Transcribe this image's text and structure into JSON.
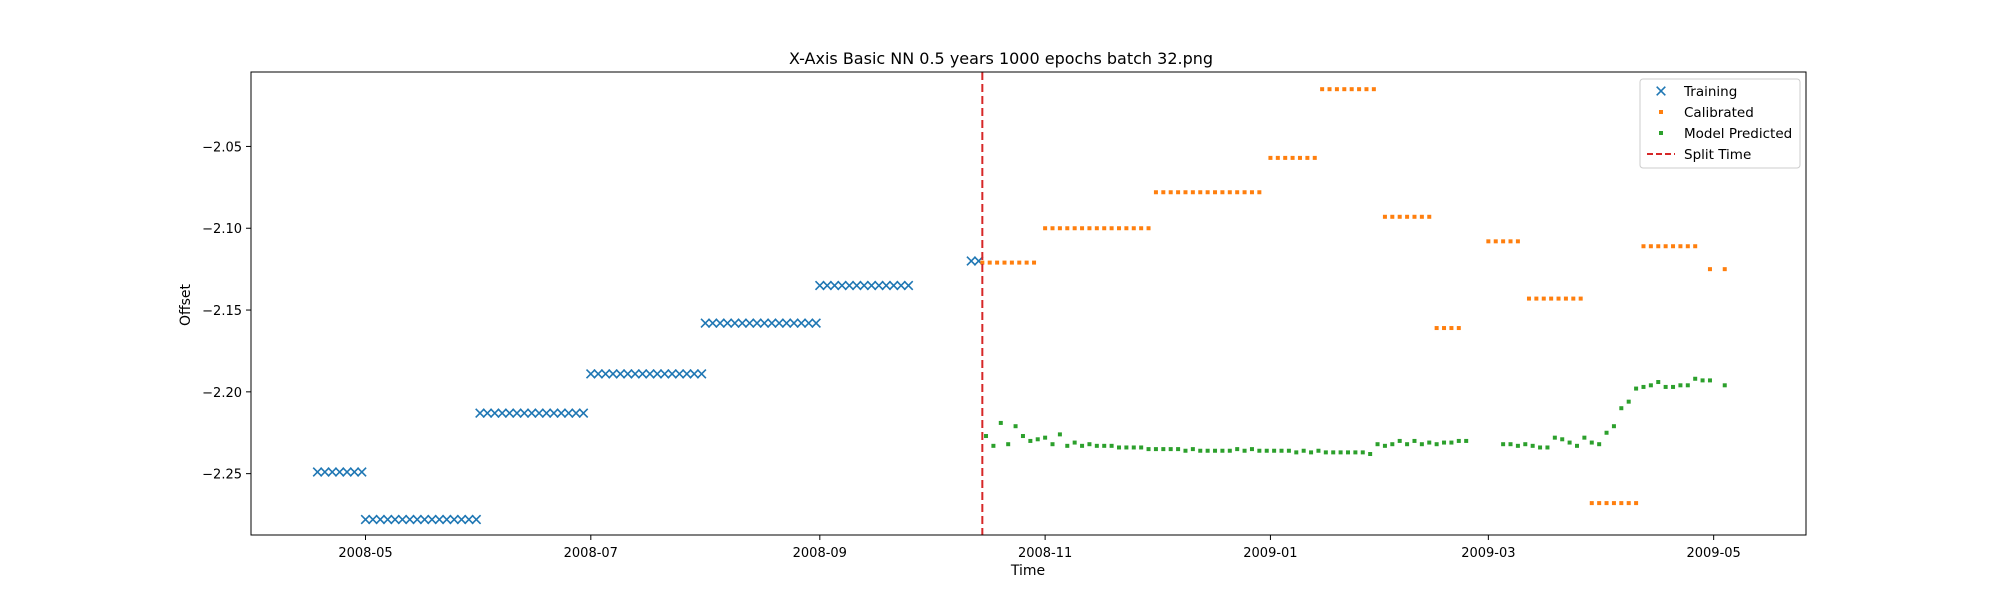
{
  "chart_data": {
    "type": "scatter",
    "title": "X-Axis Basic NN 0.5 years 1000 epochs batch 32.png",
    "xlabel": "Time",
    "ylabel": "Offset",
    "x_type": "date",
    "xlim": [
      "2008-03-31",
      "2009-05-26"
    ],
    "ylim": [
      -2.2875,
      -2.0045
    ],
    "x_ticks": [
      "2008-05-01",
      "2008-07-01",
      "2008-09-01",
      "2008-11-01",
      "2009-01-01",
      "2009-03-01",
      "2009-05-01"
    ],
    "x_tick_labels": [
      "2008-05",
      "2008-07",
      "2008-09",
      "2008-11",
      "2009-01",
      "2009-03",
      "2009-05"
    ],
    "y_ticks": [
      -2.25,
      -2.2,
      -2.15,
      -2.1,
      -2.05
    ],
    "y_tick_labels": [
      "−2.25",
      "−2.20",
      "−2.15",
      "−2.10",
      "−2.05"
    ],
    "grid": false,
    "legend_position": "top-right",
    "split_time": "2008-10-15",
    "series": [
      {
        "name": "Training",
        "marker": "x",
        "color": "#1f77b4",
        "segments": [
          {
            "start": "2008-04-18",
            "end": "2008-04-30",
            "step": 2,
            "y": -2.249
          },
          {
            "start": "2008-05-01",
            "end": "2008-05-31",
            "step": 2,
            "y": -2.278
          },
          {
            "start": "2008-06-01",
            "end": "2008-06-30",
            "step": 2,
            "y": -2.213
          },
          {
            "start": "2008-07-01",
            "end": "2008-07-31",
            "step": 2,
            "y": -2.189
          },
          {
            "start": "2008-08-01",
            "end": "2008-08-31",
            "step": 2,
            "y": -2.158
          },
          {
            "start": "2008-09-01",
            "end": "2008-09-25",
            "step": 2,
            "y": -2.135
          },
          {
            "start": "2008-10-12",
            "end": "2008-10-14",
            "step": 2,
            "y": -2.12
          }
        ]
      },
      {
        "name": "Calibrated",
        "marker": "dot",
        "color": "#ff7f0e",
        "segments": [
          {
            "start": "2008-10-15",
            "end": "2008-10-29",
            "step": 2,
            "y": -2.121
          },
          {
            "start": "2008-11-01",
            "end": "2008-11-29",
            "step": 2,
            "y": -2.1
          },
          {
            "start": "2008-12-01",
            "end": "2008-12-29",
            "step": 2,
            "y": -2.078
          },
          {
            "start": "2009-01-01",
            "end": "2009-01-13",
            "step": 2,
            "y": -2.057
          },
          {
            "start": "2009-01-15",
            "end": "2009-01-29",
            "step": 2,
            "y": -2.015
          },
          {
            "start": "2009-02-01",
            "end": "2009-02-13",
            "step": 2,
            "y": -2.093
          },
          {
            "start": "2009-02-15",
            "end": "2009-02-21",
            "step": 2,
            "y": -2.161
          },
          {
            "start": "2009-03-01",
            "end": "2009-03-09",
            "step": 2,
            "y": -2.108
          },
          {
            "start": "2009-03-12",
            "end": "2009-03-26",
            "step": 2,
            "y": -2.143
          },
          {
            "start": "2009-03-29",
            "end": "2009-04-10",
            "step": 2,
            "y": -2.268
          },
          {
            "start": "2009-04-12",
            "end": "2009-04-26",
            "step": 2,
            "y": -2.111
          },
          {
            "start": "2009-04-30",
            "end": "2009-05-04",
            "step": 4,
            "y": -2.125
          }
        ]
      },
      {
        "name": "Model Predicted",
        "marker": "dot",
        "color": "#2ca02c",
        "points": [
          [
            "2008-10-16",
            -2.227
          ],
          [
            "2008-10-18",
            -2.233
          ],
          [
            "2008-10-20",
            -2.219
          ],
          [
            "2008-10-22",
            -2.232
          ],
          [
            "2008-10-24",
            -2.221
          ],
          [
            "2008-10-26",
            -2.227
          ],
          [
            "2008-10-28",
            -2.23
          ],
          [
            "2008-10-30",
            -2.229
          ],
          [
            "2008-11-01",
            -2.228
          ],
          [
            "2008-11-03",
            -2.232
          ],
          [
            "2008-11-05",
            -2.226
          ],
          [
            "2008-11-07",
            -2.233
          ],
          [
            "2008-11-09",
            -2.231
          ],
          [
            "2008-11-11",
            -2.233
          ],
          [
            "2008-11-13",
            -2.232
          ],
          [
            "2008-11-15",
            -2.233
          ],
          [
            "2008-11-17",
            -2.233
          ],
          [
            "2008-11-19",
            -2.233
          ],
          [
            "2008-11-21",
            -2.234
          ],
          [
            "2008-11-23",
            -2.234
          ],
          [
            "2008-11-25",
            -2.234
          ],
          [
            "2008-11-27",
            -2.234
          ],
          [
            "2008-11-29",
            -2.235
          ],
          [
            "2008-12-01",
            -2.235
          ],
          [
            "2008-12-03",
            -2.235
          ],
          [
            "2008-12-05",
            -2.235
          ],
          [
            "2008-12-07",
            -2.235
          ],
          [
            "2008-12-09",
            -2.236
          ],
          [
            "2008-12-11",
            -2.235
          ],
          [
            "2008-12-13",
            -2.236
          ],
          [
            "2008-12-15",
            -2.236
          ],
          [
            "2008-12-17",
            -2.236
          ],
          [
            "2008-12-19",
            -2.236
          ],
          [
            "2008-12-21",
            -2.236
          ],
          [
            "2008-12-23",
            -2.235
          ],
          [
            "2008-12-25",
            -2.236
          ],
          [
            "2008-12-27",
            -2.235
          ],
          [
            "2008-12-29",
            -2.236
          ],
          [
            "2008-12-31",
            -2.236
          ],
          [
            "2009-01-02",
            -2.236
          ],
          [
            "2009-01-04",
            -2.236
          ],
          [
            "2009-01-06",
            -2.236
          ],
          [
            "2009-01-08",
            -2.237
          ],
          [
            "2009-01-10",
            -2.236
          ],
          [
            "2009-01-12",
            -2.237
          ],
          [
            "2009-01-14",
            -2.236
          ],
          [
            "2009-01-16",
            -2.237
          ],
          [
            "2009-01-18",
            -2.237
          ],
          [
            "2009-01-20",
            -2.237
          ],
          [
            "2009-01-22",
            -2.237
          ],
          [
            "2009-01-24",
            -2.237
          ],
          [
            "2009-01-26",
            -2.237
          ],
          [
            "2009-01-28",
            -2.238
          ],
          [
            "2009-01-30",
            -2.232
          ],
          [
            "2009-02-01",
            -2.233
          ],
          [
            "2009-02-03",
            -2.232
          ],
          [
            "2009-02-05",
            -2.23
          ],
          [
            "2009-02-07",
            -2.232
          ],
          [
            "2009-02-09",
            -2.23
          ],
          [
            "2009-02-11",
            -2.232
          ],
          [
            "2009-02-13",
            -2.231
          ],
          [
            "2009-02-15",
            -2.232
          ],
          [
            "2009-02-17",
            -2.231
          ],
          [
            "2009-02-19",
            -2.231
          ],
          [
            "2009-02-21",
            -2.23
          ],
          [
            "2009-02-23",
            -2.23
          ],
          [
            "2009-03-05",
            -2.232
          ],
          [
            "2009-03-07",
            -2.232
          ],
          [
            "2009-03-09",
            -2.233
          ],
          [
            "2009-03-11",
            -2.232
          ],
          [
            "2009-03-13",
            -2.233
          ],
          [
            "2009-03-15",
            -2.234
          ],
          [
            "2009-03-17",
            -2.234
          ],
          [
            "2009-03-19",
            -2.228
          ],
          [
            "2009-03-21",
            -2.229
          ],
          [
            "2009-03-23",
            -2.231
          ],
          [
            "2009-03-25",
            -2.233
          ],
          [
            "2009-03-27",
            -2.228
          ],
          [
            "2009-03-29",
            -2.231
          ],
          [
            "2009-03-31",
            -2.232
          ],
          [
            "2009-04-02",
            -2.225
          ],
          [
            "2009-04-04",
            -2.221
          ],
          [
            "2009-04-06",
            -2.21
          ],
          [
            "2009-04-08",
            -2.206
          ],
          [
            "2009-04-10",
            -2.198
          ],
          [
            "2009-04-12",
            -2.197
          ],
          [
            "2009-04-14",
            -2.196
          ],
          [
            "2009-04-16",
            -2.194
          ],
          [
            "2009-04-18",
            -2.197
          ],
          [
            "2009-04-20",
            -2.197
          ],
          [
            "2009-04-22",
            -2.196
          ],
          [
            "2009-04-24",
            -2.196
          ],
          [
            "2009-04-26",
            -2.192
          ],
          [
            "2009-04-28",
            -2.193
          ],
          [
            "2009-04-30",
            -2.193
          ],
          [
            "2009-05-04",
            -2.196
          ]
        ]
      },
      {
        "name": "Split Time",
        "marker": "dashed-line",
        "color": "#d62728"
      }
    ]
  }
}
